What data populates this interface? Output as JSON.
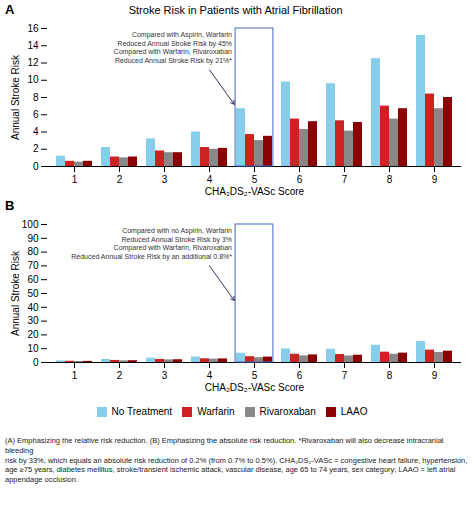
{
  "chart_data": [
    {
      "type": "bar",
      "panel_label": "A",
      "title": "Stroke Risk in Patients with Atrial Fibrillation",
      "xlabel": "CHA₂DS₂-VASc Score",
      "ylabel": "Annual Stroke Risk",
      "categories": [
        1,
        2,
        3,
        4,
        5,
        6,
        7,
        8,
        9
      ],
      "series": [
        {
          "name": "No Treatment",
          "color": "#87CEEB",
          "values": [
            1.2,
            2.2,
            3.2,
            4.0,
            6.7,
            9.8,
            9.6,
            12.5,
            15.2
          ]
        },
        {
          "name": "Warfarin",
          "color": "#CC2222",
          "values": [
            0.6,
            1.1,
            1.8,
            2.2,
            3.7,
            5.5,
            5.3,
            7.0,
            8.4
          ]
        },
        {
          "name": "Rivaroxaban",
          "color": "#888888",
          "values": [
            0.5,
            1.0,
            1.6,
            2.0,
            3.0,
            4.3,
            4.1,
            5.5,
            6.7
          ]
        },
        {
          "name": "LAAO",
          "color": "#8B0000",
          "values": [
            0.6,
            1.1,
            1.6,
            2.1,
            3.5,
            5.2,
            5.1,
            6.7,
            8.0
          ]
        }
      ],
      "ylim": [
        0,
        16
      ],
      "yticks": [
        0,
        2,
        4,
        6,
        8,
        10,
        12,
        14,
        16
      ],
      "grid": false,
      "annotations": [
        {
          "text": "Compared with Aspirin, Warfarin\nReduced Annual Stroke Risk by 45%\nCompared with Warfarin, Rivaroxaban\nReduced Annual Stroke Risk by 21%*",
          "category": 5
        }
      ]
    },
    {
      "type": "bar",
      "panel_label": "B",
      "xlabel": "CHA₂DS₂-VASc Score",
      "ylabel": "Annual Stroke Risk",
      "categories": [
        1,
        2,
        3,
        4,
        5,
        6,
        7,
        8,
        9
      ],
      "series": [
        {
          "name": "No Treatment",
          "color": "#87CEEB",
          "values": [
            1.2,
            2.2,
            3.2,
            4.0,
            6.7,
            9.8,
            9.6,
            12.5,
            15.2
          ]
        },
        {
          "name": "Warfarin",
          "color": "#CC2222",
          "values": [
            0.9,
            1.5,
            2.2,
            2.7,
            4.2,
            6.0,
            5.8,
            7.5,
            9.0
          ]
        },
        {
          "name": "Rivaroxaban",
          "color": "#888888",
          "values": [
            0.7,
            1.2,
            1.9,
            2.4,
            3.5,
            4.8,
            4.7,
            6.0,
            7.3
          ]
        },
        {
          "name": "LAAO",
          "color": "#8B0000",
          "values": [
            0.8,
            1.3,
            2.0,
            2.6,
            3.9,
            5.5,
            5.3,
            6.8,
            8.2
          ]
        }
      ],
      "ylim": [
        0,
        100
      ],
      "yticks": [
        0,
        10,
        20,
        30,
        40,
        50,
        60,
        70,
        80,
        90,
        100
      ],
      "grid": false,
      "legend": "bottom",
      "annotations": [
        {
          "text": "Compared with no Aspirin, Warfarin\nReduced Annual Stroke Risk by 3%\nCompared with Warfarin, Rivaroxaban\nReduced Annual Stroke Risk by an additional 0.8%*",
          "category": 5
        }
      ],
      "caption": "(A) Emphasizing the relative risk reduction. (B) Emphasizing the absolute risk reduction. *Rivaroxaban will also decrease intracranial bleeding\nrisk by 33%, which equals an absolute risk reduction of 0.2% (from 0.7% to 0.5%). CHA₂DS₂-VASc = congestive heart failure, hypertension,\nage ≥75 years, diabetes mellitus, stroke/transient ischemic attack, vascular disease, age 65 to 74 years, sex category; LAAO = left atrial\nappendage occlusion."
    }
  ]
}
